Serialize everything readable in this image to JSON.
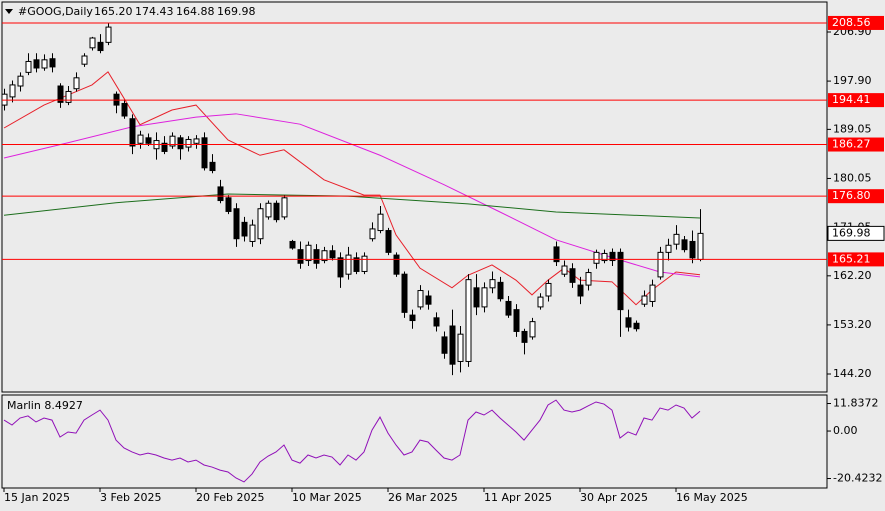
{
  "header": {
    "symbol": "#GOOG,Daily",
    "ohlc_labels": [
      "165.20",
      "174.43",
      "164.88",
      "169.98"
    ]
  },
  "chart_data": [
    {
      "type": "candlestick",
      "categories": [
        "15 Jan 2025",
        null,
        null,
        null,
        null,
        null,
        null,
        null,
        null,
        null,
        null,
        null,
        "3 Feb 2025",
        null,
        null,
        null,
        null,
        null,
        null,
        null,
        null,
        null,
        null,
        null,
        "20 Feb 2025",
        null,
        null,
        null,
        null,
        null,
        null,
        null,
        null,
        null,
        null,
        null,
        "10 Mar 2025",
        null,
        null,
        null,
        null,
        null,
        null,
        null,
        null,
        null,
        null,
        null,
        "26 Mar 2025",
        null,
        null,
        null,
        null,
        null,
        null,
        null,
        null,
        null,
        null,
        null,
        "11 Apr 2025",
        null,
        null,
        null,
        null,
        null,
        null,
        null,
        null,
        null,
        null,
        null,
        "30 Apr 2025",
        null,
        null,
        null,
        null,
        null,
        null,
        null,
        null,
        null,
        null,
        null,
        "16 May 2025",
        null,
        null,
        null
      ],
      "ohlc": [
        [
          193.5,
          196.5,
          192.5,
          195.5
        ],
        [
          195.0,
          198.0,
          194.0,
          197.2
        ],
        [
          197.0,
          199.5,
          196.0,
          198.8
        ],
        [
          199.5,
          203.0,
          199.0,
          201.5
        ],
        [
          201.8,
          203.0,
          199.5,
          200.3
        ],
        [
          200.3,
          202.8,
          199.8,
          201.8
        ],
        [
          202.0,
          203.0,
          199.5,
          200.5
        ],
        [
          197.0,
          197.5,
          193.0,
          194.0
        ],
        [
          194.0,
          197.0,
          193.5,
          196.0
        ],
        [
          196.5,
          199.5,
          196.0,
          198.5
        ],
        [
          201.0,
          203.0,
          200.5,
          202.5
        ],
        [
          204.0,
          206.0,
          203.5,
          205.8
        ],
        [
          205.0,
          206.5,
          203.0,
          203.5
        ],
        [
          205.0,
          208.6,
          204.5,
          207.8
        ],
        [
          195.5,
          196.0,
          192.0,
          193.5
        ],
        [
          193.8,
          194.5,
          191.0,
          191.5
        ],
        [
          191.0,
          191.8,
          184.5,
          186.0
        ],
        [
          186.5,
          188.8,
          185.5,
          188.0
        ],
        [
          187.5,
          188.3,
          186.0,
          186.5
        ],
        [
          185.5,
          188.5,
          183.5,
          187.0
        ],
        [
          186.5,
          187.8,
          184.5,
          185.0
        ],
        [
          186.0,
          188.5,
          185.5,
          187.8
        ],
        [
          187.5,
          188.0,
          183.5,
          185.5
        ],
        [
          185.8,
          187.8,
          185.0,
          187.2
        ],
        [
          186.5,
          188.0,
          185.5,
          187.3
        ],
        [
          187.5,
          188.5,
          181.5,
          182.0
        ],
        [
          183.0,
          184.5,
          181.0,
          181.5
        ],
        [
          178.5,
          179.8,
          175.5,
          176.0
        ],
        [
          176.5,
          177.0,
          173.5,
          174.0
        ],
        [
          174.5,
          175.5,
          167.5,
          169.0
        ],
        [
          172.0,
          173.0,
          168.5,
          169.5
        ],
        [
          168.5,
          172.5,
          167.5,
          171.5
        ],
        [
          169.0,
          175.5,
          168.0,
          174.5
        ],
        [
          173.0,
          176.0,
          172.5,
          175.5
        ],
        [
          175.5,
          176.0,
          172.0,
          172.5
        ],
        [
          173.0,
          177.0,
          172.5,
          176.5
        ],
        [
          168.5,
          168.8,
          167.0,
          167.3
        ],
        [
          167.0,
          168.5,
          163.5,
          164.5
        ],
        [
          165.0,
          168.5,
          164.0,
          167.8
        ],
        [
          167.0,
          168.0,
          163.5,
          164.5
        ],
        [
          165.0,
          167.5,
          164.5,
          166.8
        ],
        [
          166.8,
          167.8,
          165.0,
          165.5
        ],
        [
          165.5,
          166.5,
          160.0,
          162.0
        ],
        [
          162.5,
          167.5,
          161.5,
          166.0
        ],
        [
          165.5,
          166.5,
          162.5,
          163.0
        ],
        [
          163.0,
          166.5,
          162.5,
          165.8
        ],
        [
          169.0,
          172.0,
          168.5,
          170.8
        ],
        [
          170.5,
          175.0,
          170.0,
          173.5
        ],
        [
          170.5,
          171.0,
          166.0,
          166.5
        ],
        [
          166.0,
          166.5,
          162.0,
          162.5
        ],
        [
          162.5,
          163.0,
          154.5,
          155.5
        ],
        [
          155.0,
          156.0,
          152.5,
          154.0
        ],
        [
          156.5,
          160.5,
          156.0,
          159.5
        ],
        [
          158.5,
          159.5,
          156.0,
          157.0
        ],
        [
          154.5,
          155.5,
          152.0,
          153.0
        ],
        [
          151.0,
          152.0,
          147.0,
          148.0
        ],
        [
          153.0,
          156.0,
          144.0,
          146.0
        ],
        [
          146.5,
          153.0,
          144.5,
          151.5
        ],
        [
          146.5,
          162.5,
          145.5,
          161.5
        ],
        [
          160.0,
          162.5,
          155.0,
          156.5
        ],
        [
          156.5,
          161.0,
          155.5,
          160.0
        ],
        [
          160.0,
          163.0,
          159.0,
          161.5
        ],
        [
          161.0,
          162.0,
          157.5,
          158.0
        ],
        [
          157.5,
          158.5,
          154.5,
          155.0
        ],
        [
          156.0,
          157.0,
          151.0,
          152.0
        ],
        [
          152.0,
          152.5,
          147.8,
          150.0
        ],
        [
          151.0,
          154.5,
          150.5,
          153.8
        ],
        [
          156.5,
          159.0,
          156.0,
          158.3
        ],
        [
          158.5,
          161.5,
          157.5,
          160.8
        ],
        [
          167.5,
          168.5,
          164.0,
          164.8
        ],
        [
          162.5,
          165.0,
          162.0,
          164.0
        ],
        [
          163.5,
          164.5,
          160.0,
          161.0
        ],
        [
          160.5,
          162.0,
          157.0,
          158.5
        ],
        [
          160.5,
          163.5,
          159.5,
          162.8
        ],
        [
          164.5,
          167.0,
          163.5,
          166.5
        ],
        [
          165.0,
          167.0,
          164.5,
          166.3
        ],
        [
          166.5,
          167.2,
          164.0,
          165.0
        ],
        [
          166.5,
          167.2,
          151.0,
          156.0
        ],
        [
          154.5,
          156.0,
          152.0,
          152.8
        ],
        [
          153.5,
          154.0,
          152.0,
          152.5
        ],
        [
          157.0,
          159.5,
          156.5,
          158.5
        ],
        [
          157.5,
          161.5,
          156.5,
          160.5
        ],
        [
          162.0,
          167.5,
          161.5,
          166.5
        ],
        [
          166.5,
          169.0,
          165.0,
          167.8
        ],
        [
          168.0,
          171.5,
          167.0,
          169.8
        ],
        [
          168.8,
          169.5,
          166.5,
          167.0
        ],
        [
          168.5,
          170.5,
          164.5,
          165.5
        ],
        [
          165.2,
          174.43,
          164.88,
          169.98
        ]
      ],
      "up_color": "#ffffff",
      "down_color": "#000000",
      "series": [
        {
          "color": "#e8202a",
          "x": [
            0,
            5,
            11,
            13,
            17,
            21,
            24,
            28,
            32,
            35,
            40,
            45,
            47,
            49,
            52,
            56,
            58,
            61,
            64,
            66,
            68,
            70,
            72,
            76,
            79,
            81,
            84,
            87
          ],
          "values": [
            189.3,
            193.5,
            197.2,
            199.6,
            189.9,
            192.6,
            193.5,
            187.1,
            184.3,
            185.3,
            179.8,
            177.0,
            177.0,
            169.7,
            163.6,
            160.0,
            162.3,
            164.2,
            161.4,
            158.7,
            161.4,
            163.6,
            161.4,
            161.1,
            156.9,
            159.6,
            162.9,
            162.4
          ]
        },
        {
          "color": "#dd22dd",
          "x": [
            0,
            8,
            16,
            24,
            29,
            37,
            47,
            55,
            62,
            69,
            77,
            82,
            87
          ],
          "values": [
            183.8,
            186.6,
            189.5,
            191.3,
            191.9,
            190.0,
            184.3,
            178.9,
            173.9,
            168.8,
            165.1,
            162.9,
            162.0
          ]
        },
        {
          "color": "#1c6e1c",
          "x": [
            0,
            14,
            28,
            43,
            58,
            69,
            87
          ],
          "values": [
            173.3,
            175.6,
            177.2,
            176.8,
            175.4,
            173.9,
            172.8
          ]
        }
      ],
      "levels": [
        {
          "value": 208.56,
          "label": "208.56"
        },
        {
          "value": 194.41,
          "label": "194.41"
        },
        {
          "value": 186.27,
          "label": "186.27"
        },
        {
          "value": 176.8,
          "label": "176.80"
        },
        {
          "value": 165.21,
          "label": "165.21"
        }
      ],
      "level_color": "#ff0000",
      "current_price": {
        "value": 169.98,
        "label": "169.98"
      },
      "ylim": [
        140.9,
        211.85
      ],
      "yticks": [
        {
          "value": 206.9,
          "label": "206.90"
        },
        {
          "value": 197.9,
          "label": "197.90"
        },
        {
          "value": 189.05,
          "label": "189.05"
        },
        {
          "value": 180.05,
          "label": "180.05"
        },
        {
          "value": 171.05,
          "label": "171.05"
        },
        {
          "value": 162.2,
          "label": "162.20"
        },
        {
          "value": 153.2,
          "label": "153.20"
        },
        {
          "value": 144.2,
          "label": "144.20"
        }
      ]
    },
    {
      "type": "line",
      "title": "Marlin 8.4927",
      "color": "#9010b8",
      "values": [
        4.7,
        2.6,
        5.6,
        6.5,
        3.9,
        5.6,
        4.7,
        -2.6,
        -0.4,
        -0.9,
        4.7,
        6.9,
        9.0,
        4.7,
        -3.9,
        -7.3,
        -9.0,
        -10.3,
        -9.5,
        -10.3,
        -11.6,
        -12.5,
        -11.6,
        -13.3,
        -12.5,
        -14.6,
        -15.5,
        -16.8,
        -17.6,
        -20.2,
        -21.9,
        -18.5,
        -13.3,
        -10.8,
        -9.0,
        -6.0,
        -12.5,
        -13.8,
        -10.3,
        -11.6,
        -10.3,
        -11.2,
        -14.6,
        -10.3,
        -12.5,
        -9.0,
        0.4,
        6.0,
        -0.9,
        -6.0,
        -10.3,
        -9.0,
        -3.9,
        -4.7,
        -8.2,
        -11.6,
        -12.5,
        -10.3,
        4.7,
        8.2,
        6.9,
        9.0,
        5.6,
        2.6,
        -0.4,
        -3.9,
        0.4,
        4.7,
        11.2,
        13.3,
        9.0,
        8.2,
        9.0,
        10.8,
        12.5,
        11.6,
        9.0,
        -3.0,
        -0.4,
        -1.7,
        5.6,
        4.7,
        9.9,
        9.0,
        11.2,
        9.9,
        5.6,
        8.4927
      ],
      "ylim": [
        -24.5,
        15.5
      ],
      "yticks": [
        11.8372,
        {
          "value": 0,
          "label": "0.00"
        },
        -20.4232
      ]
    }
  ]
}
